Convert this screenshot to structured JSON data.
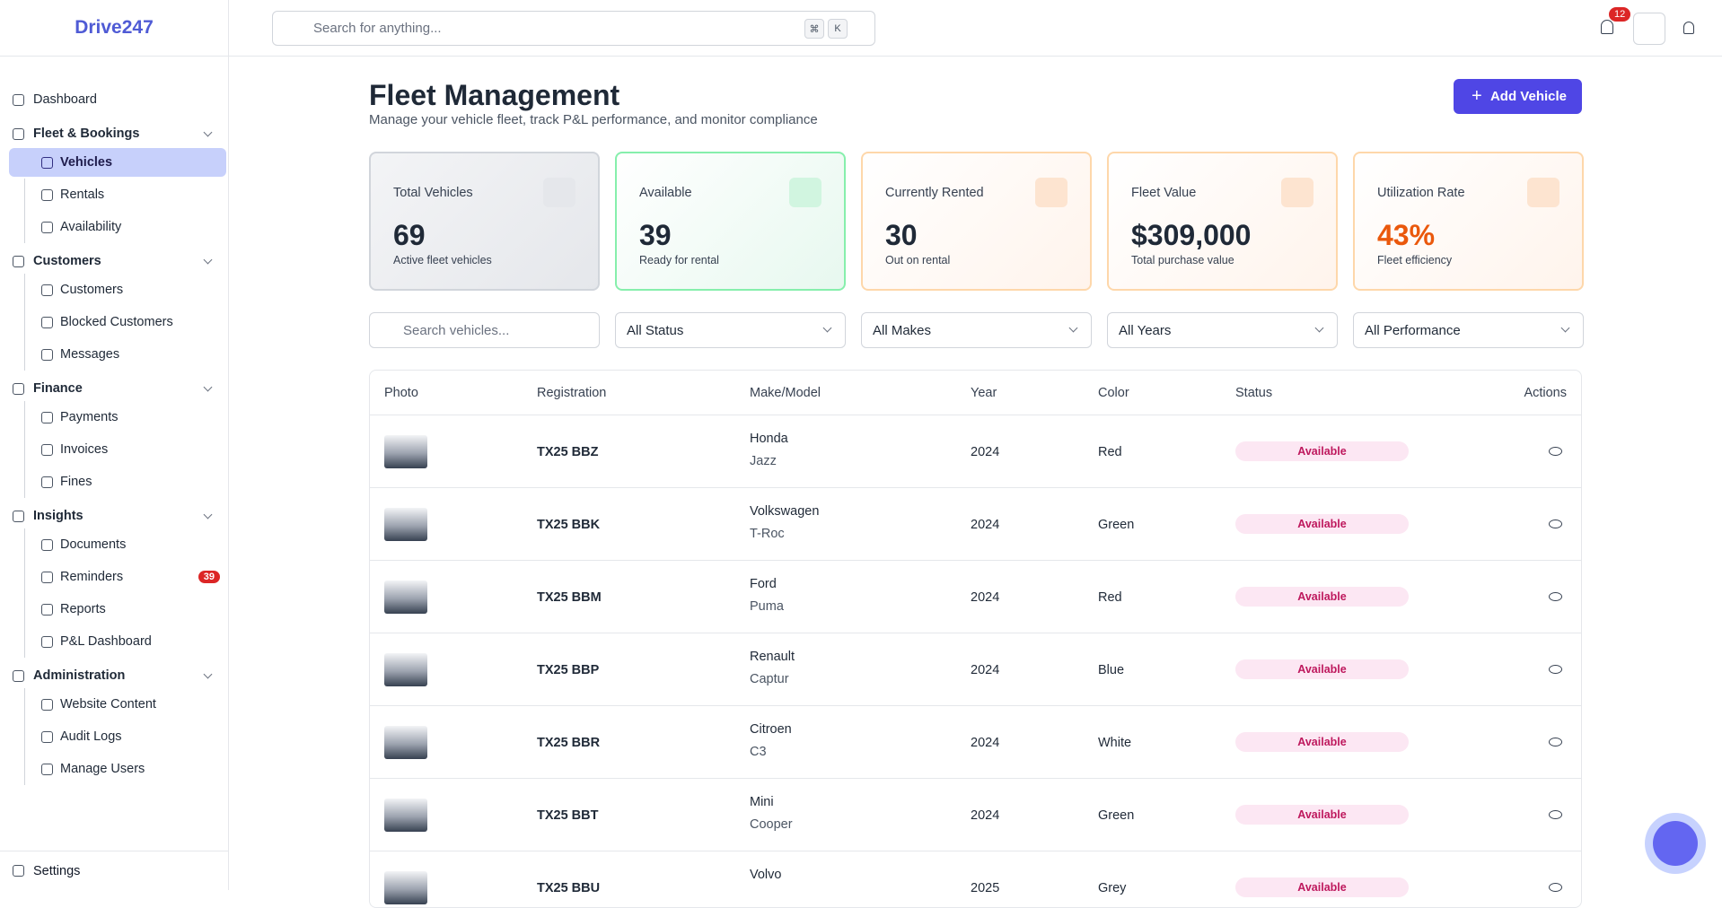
{
  "sidebar": {
    "brand": "Drive247",
    "top": "Dashboard",
    "groups": [
      {
        "title": "Fleet & Bookings",
        "items": [
          "Vehicles",
          "Rentals",
          "Availability"
        ]
      },
      {
        "title": "Customers",
        "items": [
          "Customers",
          "Blocked Customers",
          "Messages"
        ]
      },
      {
        "title": "Finance",
        "items": [
          "Payments",
          "Invoices",
          "Fines"
        ]
      },
      {
        "title": "Insights",
        "items": [
          "Documents",
          "Reminders",
          "Reports",
          "P&L Dashboard"
        ]
      },
      {
        "title": "Administration",
        "items": [
          "Website Content",
          "Audit Logs",
          "Manage Users"
        ]
      }
    ],
    "reminders_badge": 39,
    "settings": "Settings"
  },
  "header": {
    "search_placeholder": "Search for anything...",
    "shortcut": [
      "⌘",
      "K"
    ],
    "notifications": 12
  },
  "page": {
    "title": "Fleet Management",
    "subtitle": "Manage your vehicle fleet, track P&L performance, and monitor compliance",
    "add_button": "Add Vehicle"
  },
  "stats": [
    {
      "label": "Total Vehicles",
      "value": "69",
      "note": "Active fleet vehicles"
    },
    {
      "label": "Available",
      "value": "39",
      "note": "Ready for rental"
    },
    {
      "label": "Currently Rented",
      "value": "30",
      "note": "Out on rental"
    },
    {
      "label": "Fleet Value",
      "value": "$309,000",
      "note": "Total purchase value"
    },
    {
      "label": "Utilization Rate",
      "value": "43%",
      "note": "Fleet efficiency"
    }
  ],
  "filters": {
    "search_placeholder": "Search vehicles...",
    "selects": [
      "All Status",
      "All Makes",
      "All Years",
      "All Performance"
    ]
  },
  "table": {
    "columns": [
      "Photo",
      "Registration",
      "Make/Model",
      "Year",
      "Color",
      "Status",
      "Actions"
    ],
    "rows": [
      [
        "TX25 BBZ",
        "Honda",
        "Jazz",
        "2024",
        "Red",
        "Available"
      ],
      [
        "TX25 BBK",
        "Volkswagen",
        "T-Roc",
        "2024",
        "Green",
        "Available"
      ],
      [
        "TX25 BBM",
        "Ford",
        "Puma",
        "2024",
        "Red",
        "Available"
      ],
      [
        "TX25 BBP",
        "Renault",
        "Captur",
        "2024",
        "Blue",
        "Available"
      ],
      [
        "TX25 BBR",
        "Citroen",
        "C3",
        "2024",
        "White",
        "Available"
      ],
      [
        "TX25 BBT",
        "Mini",
        "Cooper",
        "2024",
        "Green",
        "Available"
      ],
      [
        "TX25 BBU",
        "Volvo",
        "",
        "2025",
        "Grey",
        "Available"
      ]
    ]
  }
}
